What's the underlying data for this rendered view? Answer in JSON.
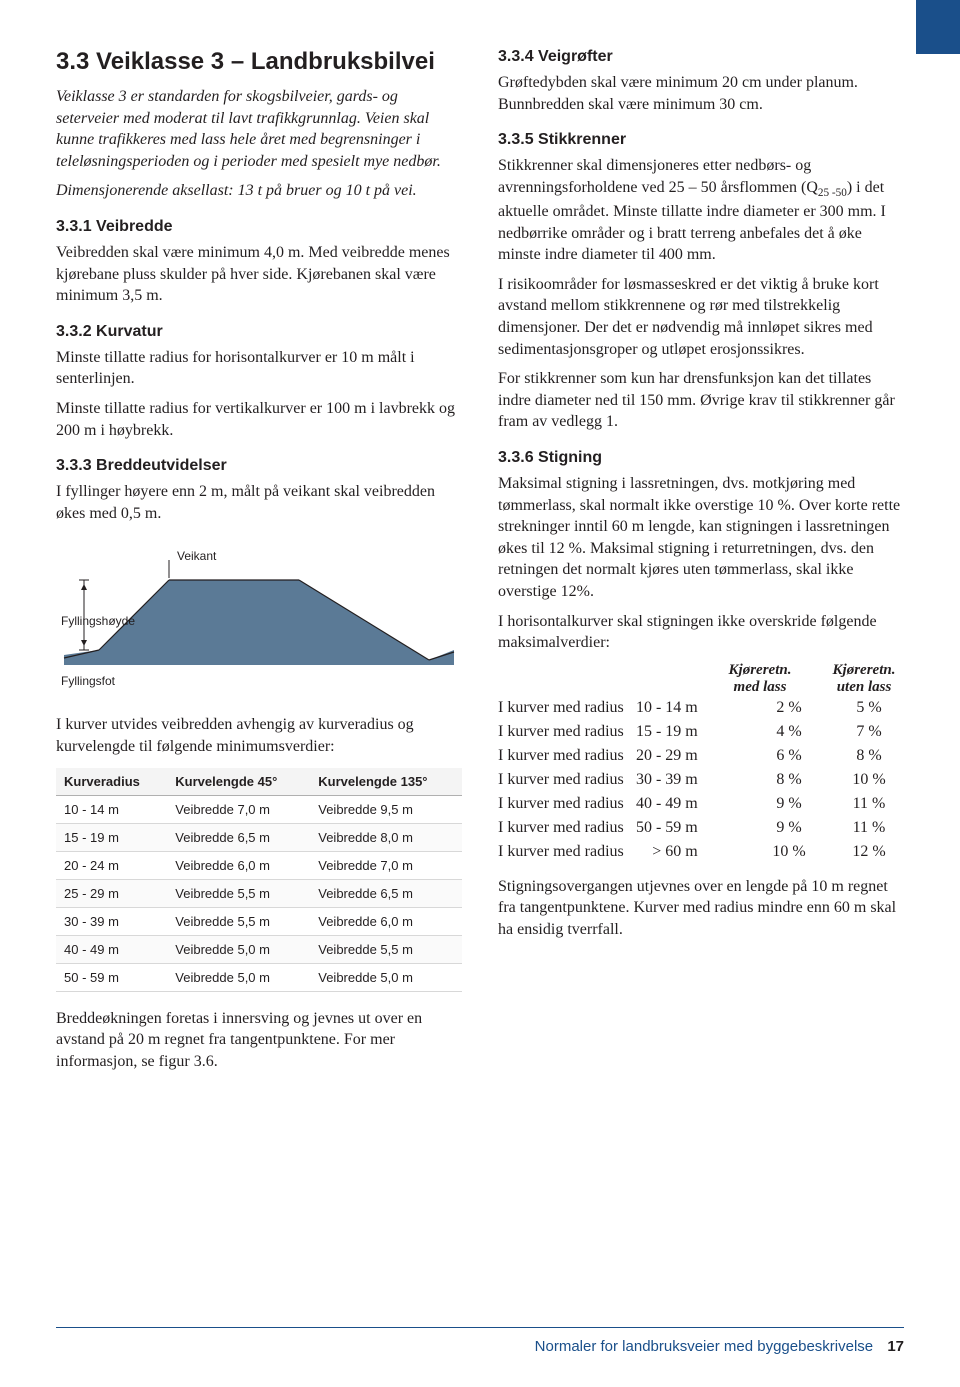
{
  "left": {
    "title": "3.3 Veiklasse 3 – Landbruksbilvei",
    "intro": "Veiklasse 3 er standarden for skogsbilveier, gards- og seterveier med moderat til lavt trafikkgrunnlag. Veien skal kunne trafikkeres med lass hele året med begrensninger i teleløsningsperioden og i perioder med spesielt mye nedbør.",
    "intro2": "Dimensjonerende aksellast: 13 t på bruer og 10 t på vei.",
    "s331_title": "3.3.1 Veibredde",
    "s331_p": "Veibredden skal være minimum 4,0 m. Med veibredde menes kjørebane pluss skulder på hver side. Kjørebanen skal være minimum 3,5 m.",
    "s332_title": "3.3.2 Kurvatur",
    "s332_p1": "Minste tillatte radius for horisontalkurver er 10 m målt i senterlinjen.",
    "s332_p2": "Minste tillatte radius for vertikalkurver er 100 m i lavbrekk og 200 m i høybrekk.",
    "s333_title": "3.3.3 Breddeutvidelser",
    "s333_p": "I fyllinger høyere enn 2 m, målt på veikant skal veibredden økes med 0,5 m.",
    "diagram": {
      "label_veikant": "Veikant",
      "label_hoyde": "Fyllingshøyde",
      "label_fot": "Fyllingsfot",
      "fill_color": "#5b7a96",
      "line_color": "#231f20"
    },
    "kurve_intro": "I kurver utvides veibredden avhengig av kurveradius og kurvelengde til følgende minimumsverdier:",
    "kurve_table": {
      "columns": [
        "Kurveradius",
        "Kurvelengde 45°",
        "Kurvelengde 135°"
      ],
      "rows": [
        [
          "10 - 14 m",
          "Veibredde 7,0 m",
          "Veibredde 9,5 m"
        ],
        [
          "15 - 19 m",
          "Veibredde 6,5 m",
          "Veibredde 8,0 m"
        ],
        [
          "20 - 24 m",
          "Veibredde 6,0 m",
          "Veibredde 7,0 m"
        ],
        [
          "25 - 29 m",
          "Veibredde 5,5 m",
          "Veibredde 6,5 m"
        ],
        [
          "30 - 39 m",
          "Veibredde 5,5 m",
          "Veibredde 6,0 m"
        ],
        [
          "40 - 49 m",
          "Veibredde 5,0 m",
          "Veibredde 5,5 m"
        ],
        [
          "50 - 59 m",
          "Veibredde 5,0 m",
          "Veibredde 5,0 m"
        ]
      ]
    },
    "kurve_outro": "Breddeøkningen foretas i innersving og jevnes ut over en avstand på 20 m regnet fra tangentpunktene. For mer informasjon, se figur 3.6."
  },
  "right": {
    "s334_title": "3.3.4 Veigrøfter",
    "s334_p": "Grøftedybden skal være minimum 20 cm under planum. Bunnbredden skal være minimum 30 cm.",
    "s335_title": "3.3.5 Stikkrenner",
    "s335_p1a": "Stikkrenner skal dimensjoneres etter nedbørs- og avrenningsforholdene ved 25 – 50 årsflommen (Q",
    "s335_p1b": ") i det aktuelle området. Minste tillatte indre diameter er 300 mm. I nedbørrike områder og i bratt terreng anbefales det å øke minste indre diameter til 400 mm.",
    "s335_sub": "25 -50",
    "s335_p2": "I risikoområder for løsmasseskred er det viktig å bruke kort avstand mellom stikkrennene og rør med tilstrekkelig dimensjoner. Der det er nødvendig må innløpet sikres med sedimentasjonsgroper og utløpet erosjonssikres.",
    "s335_p3": "For stikkrenner som kun har drensfunksjon kan det tillates indre diameter ned til 150 mm. Øvrige krav til stikkrenner går fram av vedlegg 1.",
    "s336_title": "3.3.6 Stigning",
    "s336_p1": "Maksimal stigning i lassretningen, dvs. motkjøring med tømmerlass, skal normalt ikke overstige 10 %. Over korte rette strekninger inntil 60 m lengde, kan stigningen i lassretningen økes til 12 %. Maksimal stigning i returretningen, dvs. den retningen det normalt kjøres uten tømmerlass, skal ikke overstige 12%.",
    "s336_p2": "I horisontalkurver skal stigningen ikke overskride følgende maksimalverdier:",
    "stigning_headers": [
      "Kjøreretn. med lass",
      "Kjøreretn. uten lass"
    ],
    "stigning_rows": [
      {
        "label": "I kurver med radius",
        "range": "10 - 14 m",
        "v1": "2 %",
        "v2": "5 %"
      },
      {
        "label": "I kurver med radius",
        "range": "15 - 19 m",
        "v1": "4 %",
        "v2": "7 %"
      },
      {
        "label": "I kurver med radius",
        "range": "20 - 29 m",
        "v1": "6 %",
        "v2": "8 %"
      },
      {
        "label": "I kurver med radius",
        "range": "30 - 39 m",
        "v1": "8 %",
        "v2": "10 %"
      },
      {
        "label": "I kurver med radius",
        "range": "40 - 49 m",
        "v1": "9 %",
        "v2": "11 %"
      },
      {
        "label": "I kurver med radius",
        "range": "50 - 59 m",
        "v1": "9 %",
        "v2": "11 %"
      },
      {
        "label": "I kurver med radius",
        "range": "> 60 m",
        "v1": "10 %",
        "v2": "12 %"
      }
    ],
    "s336_p3": "Stigningsovergangen utjevnes over en lengde på 10 m regnet fra tangentpunktene. Kurver med radius mindre enn 60 m skal ha ensidig tverrfall."
  },
  "footer": {
    "text": "Normaler for landbruksveier med byggebeskrivelse",
    "page": "17"
  }
}
